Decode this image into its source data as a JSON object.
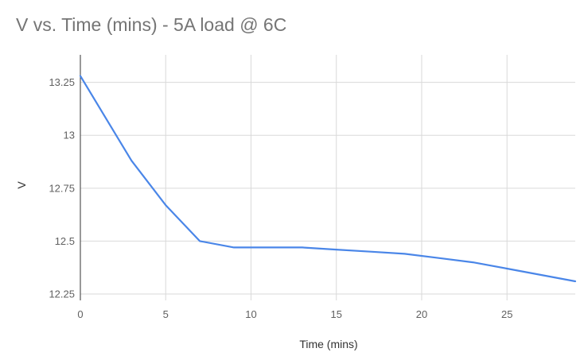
{
  "chart_data": {
    "type": "line",
    "title": "V vs. Time (mins) - 5A load @ 6C",
    "xlabel": "Time (mins)",
    "ylabel": "V",
    "xlim": [
      0,
      29
    ],
    "ylim": [
      12.22,
      13.38
    ],
    "x_ticks": [
      0,
      5,
      10,
      15,
      20,
      25
    ],
    "y_ticks": [
      12.25,
      12.5,
      12.75,
      13,
      13.25
    ],
    "x_tick_labels": [
      "0",
      "5",
      "10",
      "15",
      "20",
      "25"
    ],
    "y_tick_labels": [
      "12.25",
      "12.5",
      "12.75",
      "13",
      "13.25"
    ],
    "grid": true,
    "legend": "none",
    "series": [
      {
        "color": "#4a86e8",
        "x": [
          0,
          3,
          5,
          7,
          9,
          11,
          13,
          15,
          17,
          19,
          21,
          23,
          25,
          27,
          29
        ],
        "y": [
          13.28,
          12.88,
          12.67,
          12.5,
          12.47,
          12.47,
          12.47,
          12.46,
          12.45,
          12.44,
          12.42,
          12.4,
          12.37,
          12.34,
          12.31
        ]
      }
    ]
  }
}
